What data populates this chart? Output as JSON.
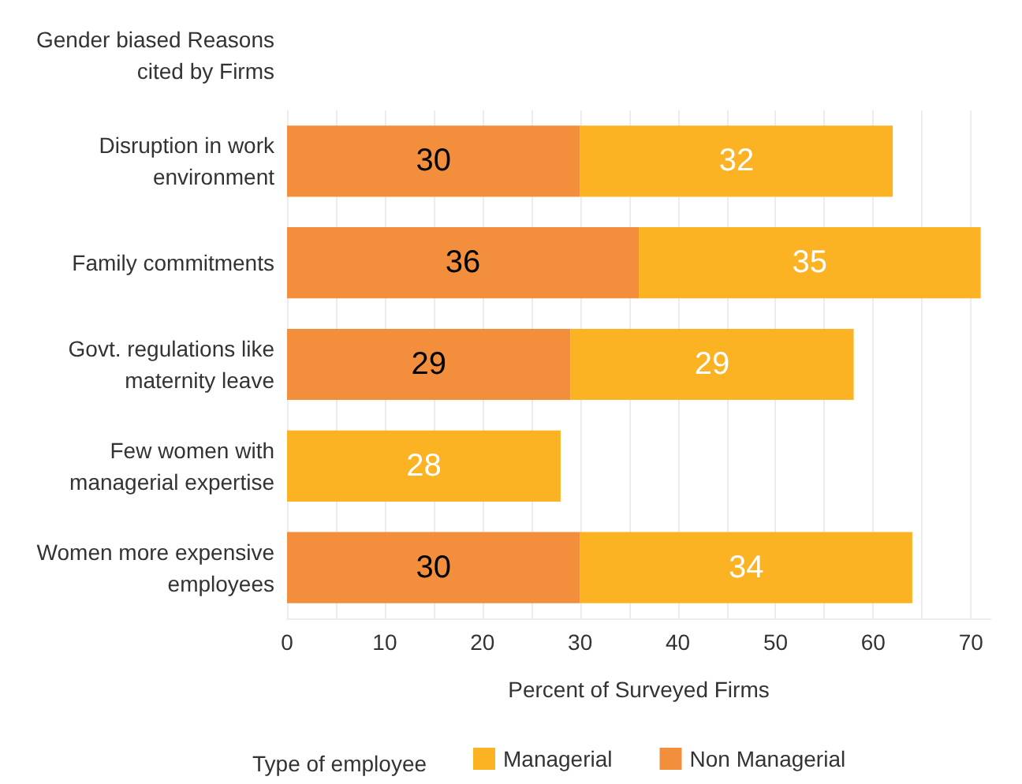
{
  "chart_data": {
    "type": "bar",
    "orientation": "horizontal",
    "stacked": true,
    "ylabel": "Gender biased Reasons\ncited by Firms",
    "xlabel": "Percent of Surveyed Firms",
    "legend_title": "Type of employee",
    "categories": [
      "Disruption in work\nenvironment",
      "Family commitments",
      "Govt. regulations like\nmaternity leave",
      "Few women with\nmanagerial expertise",
      "Women more expensive\nemployees"
    ],
    "series": [
      {
        "name": "Non Managerial",
        "color": "#f28e3c",
        "values": [
          30,
          36,
          29,
          null,
          30
        ]
      },
      {
        "name": "Managerial",
        "color": "#fbb324",
        "values": [
          32,
          35,
          29,
          28,
          34
        ]
      }
    ],
    "xlim": [
      0,
      72
    ],
    "xticks": [
      0,
      {
        "value": 5,
        "label": null
      },
      10,
      {
        "value": 15,
        "label": null
      },
      20,
      {
        "value": 25,
        "label": null
      },
      30,
      {
        "value": 35,
        "label": null
      },
      40,
      {
        "value": 45,
        "label": null
      },
      50,
      {
        "value": 55,
        "label": null
      },
      60,
      {
        "value": 65,
        "label": null
      },
      70
    ],
    "grid": "x",
    "legend": "bottom",
    "data_labels": true
  }
}
